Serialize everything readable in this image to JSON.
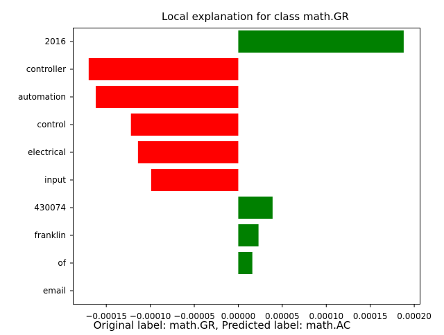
{
  "chart_data": {
    "type": "bar",
    "orientation": "horizontal",
    "title": "Local explanation for class math.GR",
    "caption": "Original label: math.GR, Predicted label: math.AC",
    "categories": [
      "2016",
      "controller",
      "automation",
      "control",
      "electrical",
      "input",
      "430074",
      "franklin",
      "of",
      "email"
    ],
    "values": [
      0.000188,
      -0.00017,
      -0.000162,
      -0.000122,
      -0.000114,
      -9.9e-05,
      3.9e-05,
      2.3e-05,
      1.6e-05,
      0.0
    ],
    "xlim": [
      -0.000188,
      0.000207
    ],
    "xticks": [
      -0.00015,
      -0.0001,
      -5e-05,
      0.0,
      5e-05,
      0.0001,
      0.00015,
      0.0002
    ],
    "xtick_labels": [
      "−0.00015",
      "−0.00010",
      "−0.00005",
      "0.00000",
      "0.00005",
      "0.00010",
      "0.00015",
      "0.00020"
    ],
    "colors": {
      "positive": "#008000",
      "negative": "#ff0000"
    },
    "grid": false,
    "xlabel": "",
    "ylabel": ""
  }
}
